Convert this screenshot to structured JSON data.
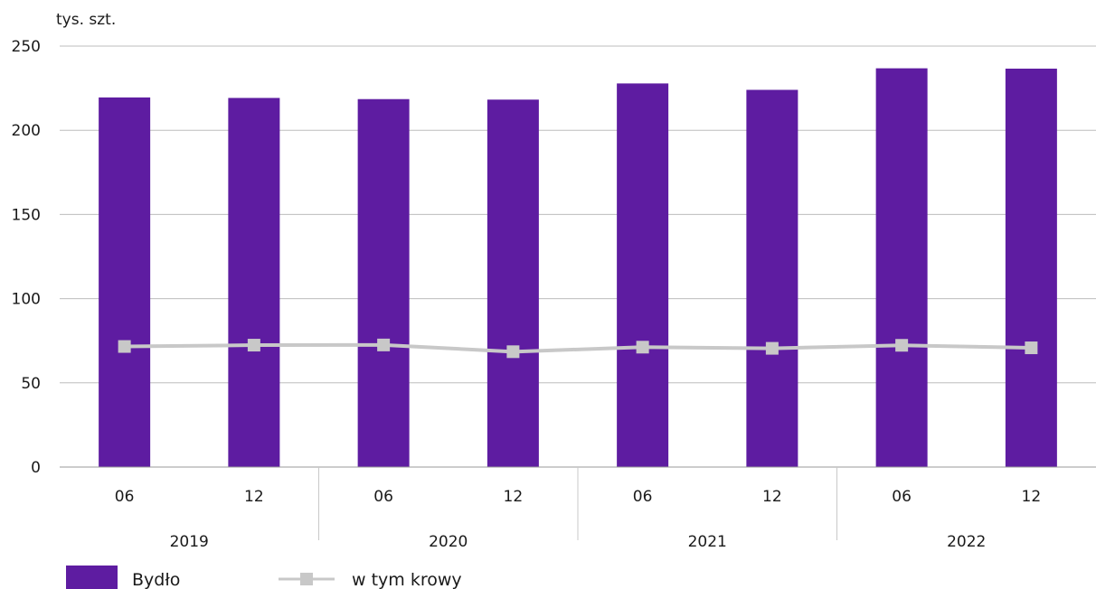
{
  "chart_data": {
    "type": "bar",
    "unit_label": "tys. szt.",
    "categories": [
      "06",
      "12",
      "06",
      "12",
      "06",
      "12",
      "06",
      "12"
    ],
    "groups": [
      {
        "label": "2019",
        "span": 2
      },
      {
        "label": "2020",
        "span": 2
      },
      {
        "label": "2021",
        "span": 2
      },
      {
        "label": "2022",
        "span": 2
      }
    ],
    "ylim": [
      0,
      250
    ],
    "yticks": [
      "0",
      "50",
      "100",
      "150",
      "200",
      "250"
    ],
    "grid": true,
    "legend_position": "bottom-left",
    "series": [
      {
        "name": "Bydło",
        "kind": "bar",
        "color": "#5e1ca1",
        "values": [
          219.5,
          219.2,
          218.5,
          218.2,
          227.8,
          224.0,
          236.8,
          236.6
        ]
      },
      {
        "name": "w tym krowy",
        "kind": "line",
        "marker": "square",
        "color": "#c8c8c8",
        "values": [
          71.6,
          72.4,
          72.5,
          68.5,
          71.2,
          70.5,
          72.3,
          70.8
        ]
      }
    ]
  }
}
